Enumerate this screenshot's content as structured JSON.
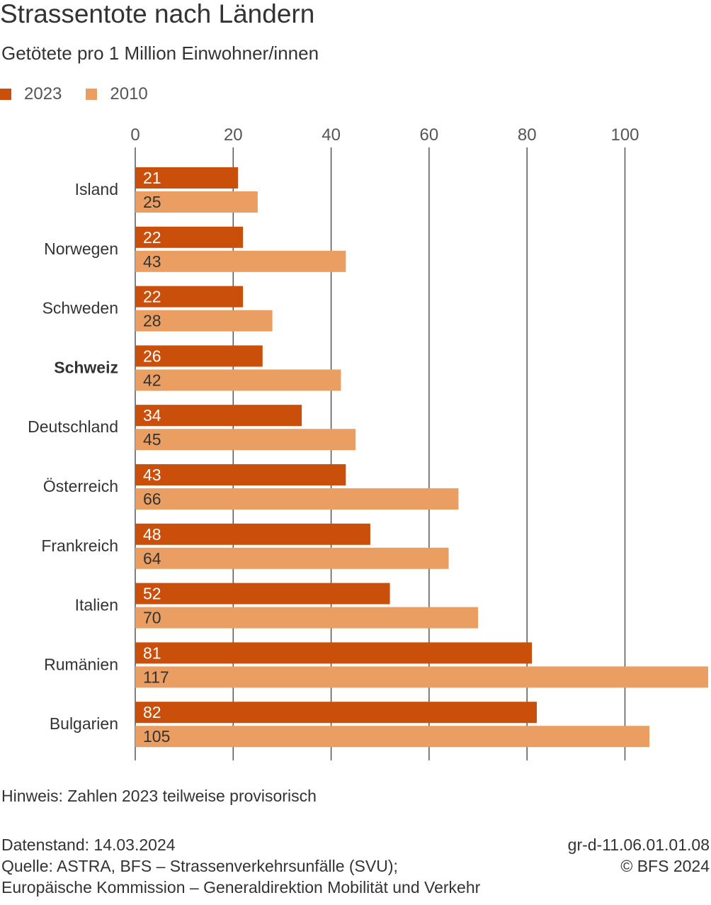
{
  "header": {
    "title": "Strassentote nach Ländern",
    "subtitle": "Getötete pro 1 Million Einwohner/innen"
  },
  "colors": {
    "series_2023": "#c94f0b",
    "series_2010": "#ea9e62",
    "grid": "#555555"
  },
  "chart_data": {
    "type": "bar",
    "orientation": "horizontal",
    "categories": [
      "Island",
      "Norwegen",
      "Schweden",
      "Schweiz",
      "Deutschland",
      "Österreich",
      "Frankreich",
      "Italien",
      "Rumänien",
      "Bulgarien"
    ],
    "highlight_category": "Schweiz",
    "series": [
      {
        "name": "2023",
        "color": "#c94f0b",
        "values": [
          21,
          22,
          22,
          26,
          34,
          43,
          48,
          52,
          81,
          82
        ]
      },
      {
        "name": "2010",
        "color": "#ea9e62",
        "values": [
          25,
          43,
          28,
          42,
          45,
          66,
          64,
          70,
          117,
          105
        ]
      }
    ],
    "x_ticks": [
      "0",
      "20",
      "40",
      "60",
      "80",
      "100"
    ],
    "xlim": [
      0,
      117
    ],
    "grid": true,
    "legend_position": "top-left",
    "data_labels": true
  },
  "notes": {
    "hinweis": "Hinweis: Zahlen 2023 teilweise provisorisch"
  },
  "footer": {
    "datenstand": "Datenstand: 14.03.2024",
    "quelle_1": "Quelle: ASTRA, BFS – Strassenverkehrsunfälle (SVU);",
    "quelle_2": "Europäische Kommission – Generaldirektion Mobilität und Verkehr",
    "code": "gr-d-11.06.01.01.08",
    "copyright": "© BFS 2024"
  }
}
